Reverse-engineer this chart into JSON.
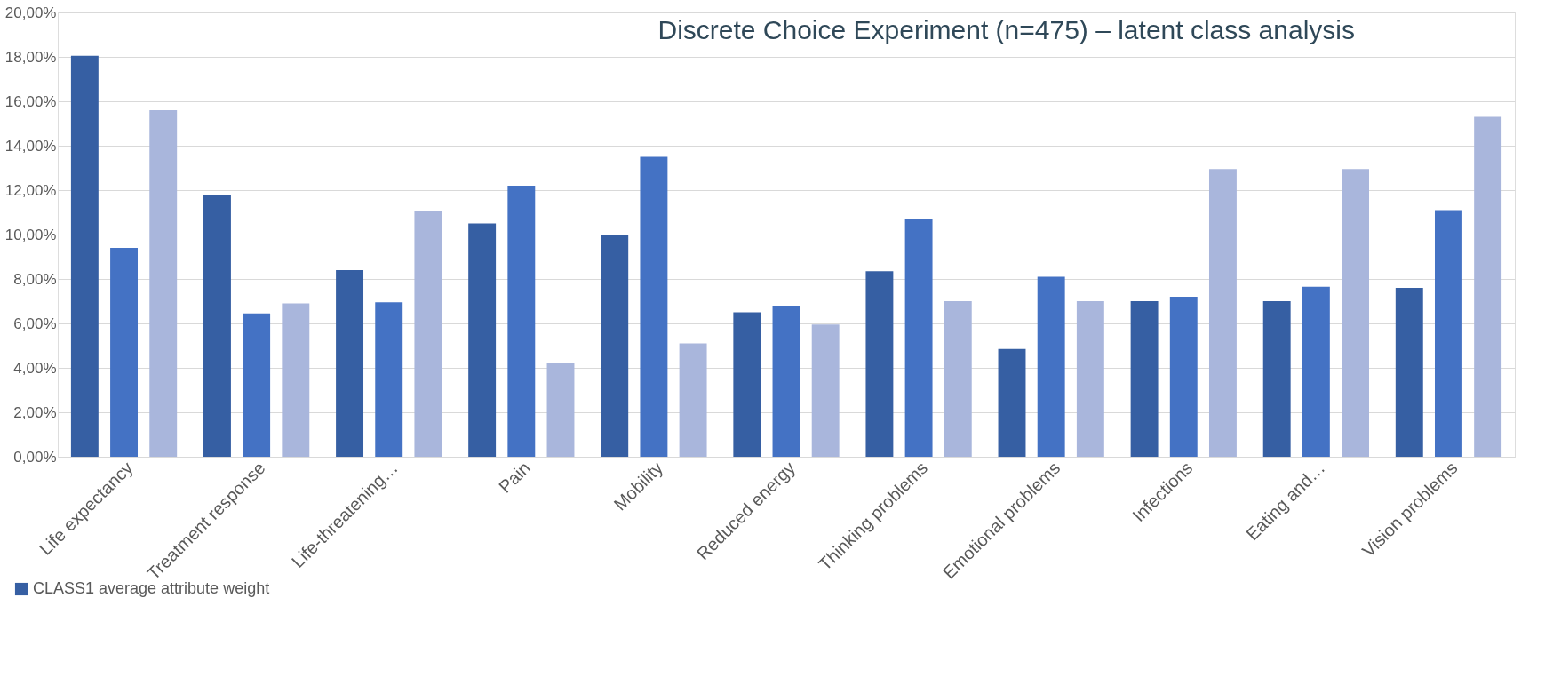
{
  "chart_data": {
    "type": "bar",
    "title": "Discrete Choice Experiment (n=475) – latent class analysis",
    "categories": [
      "Life expectancy",
      "Treatment response",
      "Life-threatening…",
      "Pain",
      "Mobility",
      "Reduced energy",
      "Thinking problems",
      "Emotional problems",
      "Infections",
      "Eating and…",
      "Vision problems"
    ],
    "series": [
      {
        "name": "CLASS1 average attribute weight",
        "color": "#365fa3",
        "values": [
          18.05,
          11.8,
          8.4,
          10.5,
          10.0,
          6.5,
          8.35,
          4.85,
          7.0,
          7.0,
          7.6
        ]
      },
      {
        "color": "#4472c4",
        "values": [
          9.4,
          6.45,
          6.95,
          12.2,
          13.5,
          6.8,
          10.7,
          8.1,
          7.2,
          7.65,
          11.1
        ]
      },
      {
        "color": "#a9b6dc",
        "values": [
          15.6,
          6.9,
          11.05,
          4.2,
          5.1,
          5.95,
          7.0,
          7.0,
          12.95,
          12.95,
          15.3
        ]
      }
    ],
    "ylim": [
      0,
      20
    ],
    "yticks": [
      {
        "value": 0,
        "label": "0,00%"
      },
      {
        "value": 2,
        "label": "2,00%"
      },
      {
        "value": 4,
        "label": "4,00%"
      },
      {
        "value": 6,
        "label": "6,00%"
      },
      {
        "value": 8,
        "label": "8,00%"
      },
      {
        "value": 10,
        "label": "10,00%"
      },
      {
        "value": 12,
        "label": "12,00%"
      },
      {
        "value": 14,
        "label": "14,00%"
      },
      {
        "value": 16,
        "label": "16,00%"
      },
      {
        "value": 18,
        "label": "18,00%"
      },
      {
        "value": 20,
        "label": "20,00%"
      }
    ],
    "grid": "y",
    "legend": "bottom left"
  }
}
